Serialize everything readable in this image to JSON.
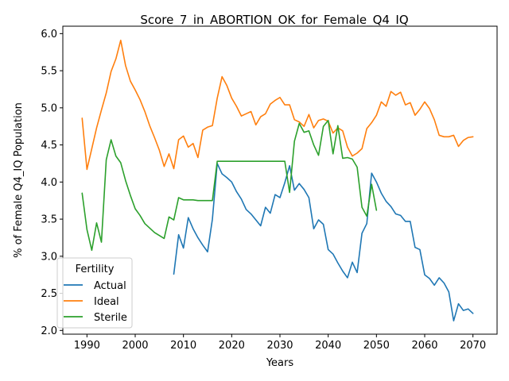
{
  "chart_data": {
    "type": "line",
    "title": "Score_7_in_ABORTION_OK_for_Female_Q4_IQ",
    "xlabel": "Years",
    "ylabel": "% of Female Q4_IQ Population",
    "xlim": [
      1985,
      2075
    ],
    "ylim": [
      1.95,
      6.1
    ],
    "xticks": [
      1990,
      2000,
      2010,
      2020,
      2030,
      2040,
      2050,
      2060,
      2070
    ],
    "yticks": [
      2.0,
      2.5,
      3.0,
      3.5,
      4.0,
      4.5,
      5.0,
      5.5,
      6.0
    ],
    "xtick_labels": [
      "1990",
      "2000",
      "2010",
      "2020",
      "2030",
      "2040",
      "2050",
      "2060",
      "2070"
    ],
    "ytick_labels": [
      "2.0",
      "2.5",
      "3.0",
      "3.5",
      "4.0",
      "4.5",
      "5.0",
      "5.5",
      "6.0"
    ],
    "grid": false,
    "legend": {
      "title": "Fertility",
      "placement": "lower-left"
    },
    "series": [
      {
        "name": "Actual",
        "color": "#1f77b4",
        "x": [
          2008,
          2009,
          2010,
          2011,
          2012,
          2013,
          2014,
          2015,
          2016,
          2017,
          2018,
          2019,
          2020,
          2021,
          2022,
          2023,
          2024,
          2025,
          2026,
          2027,
          2028,
          2029,
          2030,
          2031,
          2032,
          2033,
          2034,
          2035,
          2036,
          2037,
          2038,
          2039,
          2040,
          2041,
          2042,
          2043,
          2044,
          2045,
          2046,
          2047,
          2048,
          2049,
          2050,
          2051,
          2052,
          2053,
          2054,
          2055,
          2056,
          2057,
          2058,
          2059,
          2060,
          2061,
          2062,
          2063,
          2064,
          2065,
          2066,
          2067,
          2068,
          2069,
          2070
        ],
        "y": [
          2.76,
          3.29,
          3.11,
          3.52,
          3.37,
          3.25,
          3.15,
          3.06,
          3.5,
          4.25,
          4.11,
          4.06,
          4.0,
          3.87,
          3.77,
          3.63,
          3.57,
          3.49,
          3.41,
          3.66,
          3.58,
          3.83,
          3.79,
          3.99,
          4.22,
          3.89,
          3.98,
          3.9,
          3.79,
          3.37,
          3.49,
          3.43,
          3.09,
          3.03,
          2.91,
          2.8,
          2.71,
          2.92,
          2.78,
          3.31,
          3.44,
          4.12,
          4.0,
          3.85,
          3.74,
          3.67,
          3.57,
          3.55,
          3.47,
          3.47,
          3.12,
          3.09,
          2.75,
          2.7,
          2.61,
          2.71,
          2.64,
          2.52,
          2.13,
          2.36,
          2.27,
          2.29,
          2.23
        ]
      },
      {
        "name": "Ideal",
        "color": "#ff7f0e",
        "x": [
          1989,
          1990,
          1991,
          1992,
          1993,
          1994,
          1995,
          1996,
          1997,
          1998,
          1999,
          2000,
          2001,
          2002,
          2003,
          2004,
          2005,
          2006,
          2007,
          2008,
          2009,
          2010,
          2011,
          2012,
          2013,
          2014,
          2015,
          2016,
          2017,
          2018,
          2019,
          2020,
          2021,
          2022,
          2023,
          2024,
          2025,
          2026,
          2027,
          2028,
          2029,
          2030,
          2031,
          2032,
          2033,
          2034,
          2035,
          2036,
          2037,
          2038,
          2039,
          2040,
          2041,
          2042,
          2043,
          2044,
          2045,
          2046,
          2047,
          2048,
          2049,
          2050,
          2051,
          2052,
          2053,
          2054,
          2055,
          2056,
          2057,
          2058,
          2059,
          2060,
          2061,
          2062,
          2063,
          2064,
          2065,
          2066,
          2067,
          2068,
          2069,
          2070
        ],
        "y": [
          4.86,
          4.17,
          4.45,
          4.73,
          4.97,
          5.2,
          5.49,
          5.66,
          5.91,
          5.57,
          5.36,
          5.24,
          5.11,
          4.95,
          4.76,
          4.6,
          4.43,
          4.21,
          4.38,
          4.18,
          4.57,
          4.62,
          4.47,
          4.52,
          4.33,
          4.7,
          4.74,
          4.76,
          5.13,
          5.42,
          5.3,
          5.13,
          5.02,
          4.89,
          4.92,
          4.95,
          4.77,
          4.88,
          4.92,
          5.05,
          5.1,
          5.14,
          5.04,
          5.04,
          4.84,
          4.81,
          4.75,
          4.91,
          4.73,
          4.83,
          4.85,
          4.82,
          4.66,
          4.73,
          4.69,
          4.47,
          4.35,
          4.39,
          4.45,
          4.72,
          4.8,
          4.9,
          5.08,
          5.02,
          5.22,
          5.17,
          5.21,
          5.04,
          5.07,
          4.9,
          4.98,
          5.08,
          4.99,
          4.84,
          4.63,
          4.61,
          4.61,
          4.63,
          4.48,
          4.56,
          4.6,
          4.61
        ]
      },
      {
        "name": "Sterile",
        "color": "#2ca02c",
        "x": [
          1989,
          1990,
          1991,
          1992,
          1993,
          1994,
          1995,
          1996,
          1997,
          1998,
          1999,
          2000,
          2001,
          2002,
          2003,
          2004,
          2005,
          2006,
          2007,
          2008,
          2009,
          2010,
          2011,
          2012,
          2013,
          2014,
          2015,
          2016,
          2017,
          2018,
          2019,
          2020,
          2021,
          2022,
          2023,
          2024,
          2025,
          2026,
          2027,
          2028,
          2029,
          2030,
          2031,
          2032,
          2033,
          2034,
          2035,
          2036,
          2037,
          2038,
          2039,
          2040,
          2041,
          2042,
          2043,
          2044,
          2045,
          2046,
          2047,
          2048,
          2049,
          2050
        ],
        "y": [
          3.85,
          3.36,
          3.08,
          3.45,
          3.19,
          4.3,
          4.57,
          4.35,
          4.26,
          4.02,
          3.82,
          3.64,
          3.55,
          3.44,
          3.38,
          3.32,
          3.28,
          3.24,
          3.53,
          3.49,
          3.79,
          3.76,
          3.76,
          3.76,
          3.75,
          3.75,
          3.75,
          3.75,
          4.28,
          4.28,
          4.28,
          4.28,
          4.28,
          4.28,
          4.28,
          4.28,
          4.28,
          4.28,
          4.28,
          4.28,
          4.28,
          4.28,
          4.28,
          3.86,
          4.55,
          4.79,
          4.67,
          4.69,
          4.5,
          4.36,
          4.75,
          4.83,
          4.38,
          4.76,
          4.32,
          4.33,
          4.31,
          4.2,
          3.66,
          3.54,
          3.97,
          3.62
        ]
      }
    ]
  }
}
